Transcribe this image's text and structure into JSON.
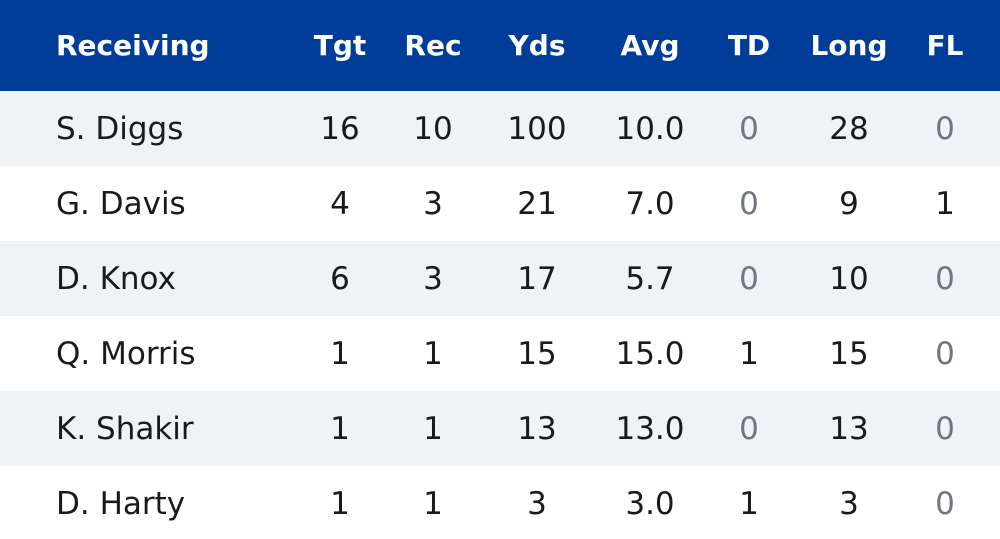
{
  "colors": {
    "header_bg": "#003d99",
    "header_text": "#ffffff",
    "row_shaded": "#f0f3f6",
    "row_white": "#ffffff",
    "zero_text": "#6f7680"
  },
  "table": {
    "headers": {
      "name": "Receiving",
      "tgt": "Tgt",
      "rec": "Rec",
      "yds": "Yds",
      "avg": "Avg",
      "td": "TD",
      "long": "Long",
      "fl": "FL"
    },
    "rows": [
      {
        "name": "S. Diggs",
        "tgt": "16",
        "rec": "10",
        "yds": "100",
        "avg": "10.0",
        "td": "0",
        "long": "28",
        "fl": "0"
      },
      {
        "name": "G. Davis",
        "tgt": "4",
        "rec": "3",
        "yds": "21",
        "avg": "7.0",
        "td": "0",
        "long": "9",
        "fl": "1"
      },
      {
        "name": "D. Knox",
        "tgt": "6",
        "rec": "3",
        "yds": "17",
        "avg": "5.7",
        "td": "0",
        "long": "10",
        "fl": "0"
      },
      {
        "name": "Q. Morris",
        "tgt": "1",
        "rec": "1",
        "yds": "15",
        "avg": "15.0",
        "td": "1",
        "long": "15",
        "fl": "0"
      },
      {
        "name": "K. Shakir",
        "tgt": "1",
        "rec": "1",
        "yds": "13",
        "avg": "13.0",
        "td": "0",
        "long": "13",
        "fl": "0"
      },
      {
        "name": "D. Harty",
        "tgt": "1",
        "rec": "1",
        "yds": "3",
        "avg": "3.0",
        "td": "1",
        "long": "3",
        "fl": "0"
      }
    ]
  }
}
